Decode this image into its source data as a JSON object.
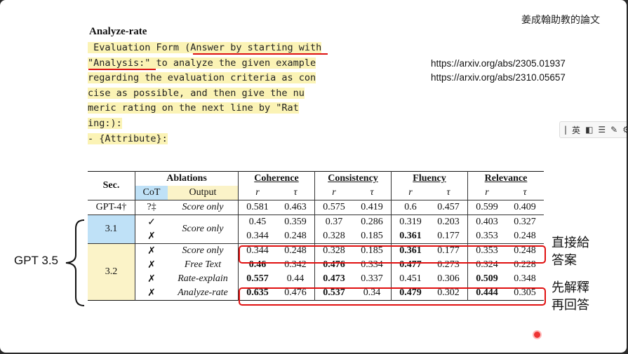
{
  "author_note": "姜成翰助教的論文",
  "section_heading": "Analyze-rate",
  "code_lines": [
    " Evaluation Form (Answer by starting with",
    "\"Analysis:\" to analyze the given example",
    "regarding the evaluation criteria as con",
    "cise as possible, and then give the nu",
    "meric rating on the next line by \"Rat",
    "ing:):",
    "- {Attribute}:"
  ],
  "refs": [
    "https://arxiv.org/abs/2305.01937",
    "https://arxiv.org/abs/2310.05657"
  ],
  "toolbar": {
    "items": [
      "英",
      "◧",
      "☰",
      "✎",
      "⚙"
    ]
  },
  "table": {
    "header": {
      "sec": "Sec.",
      "ablations": "Ablations",
      "cot": "CoT",
      "output": "Output",
      "metrics": [
        "Coherence",
        "Consistency",
        "Fluency",
        "Relevance"
      ],
      "sub": [
        "r",
        "τ",
        "r",
        "τ",
        "r",
        "τ",
        "r",
        "τ"
      ]
    },
    "rows": [
      {
        "sec": "GPT-4†",
        "cot": "?‡",
        "output": "Score only",
        "vals": [
          "0.581",
          "0.463",
          "0.575",
          "0.419",
          "0.6",
          "0.457",
          "0.599",
          "0.409"
        ],
        "bold": []
      },
      {
        "sec": "3.1",
        "cot": "✓",
        "output": "Score only",
        "vals": [
          "0.45",
          "0.359",
          "0.37",
          "0.286",
          "0.319",
          "0.203",
          "0.403",
          "0.327"
        ],
        "bold": []
      },
      {
        "sec": "",
        "cot": "✗",
        "output": "",
        "vals": [
          "0.344",
          "0.248",
          "0.328",
          "0.185",
          "0.361",
          "0.177",
          "0.353",
          "0.248"
        ],
        "bold": [
          4
        ]
      },
      {
        "sec": "3.2",
        "cot": "✗",
        "output": "Score only",
        "vals": [
          "0.344",
          "0.248",
          "0.328",
          "0.185",
          "0.361",
          "0.177",
          "0.353",
          "0.248"
        ],
        "bold": [
          4
        ]
      },
      {
        "sec": "",
        "cot": "✗",
        "output": "Free Text",
        "vals": [
          "0.46",
          "0.342",
          "0.476",
          "0.334",
          "0.477",
          "0.273",
          "0.324",
          "0.228"
        ],
        "bold": [
          0,
          2,
          4
        ]
      },
      {
        "sec": "",
        "cot": "✗",
        "output": "Rate-explain",
        "vals": [
          "0.557",
          "0.44",
          "0.473",
          "0.337",
          "0.451",
          "0.306",
          "0.509",
          "0.348"
        ],
        "bold": [
          0,
          2,
          6
        ]
      },
      {
        "sec": "",
        "cot": "✗",
        "output": "Analyze-rate",
        "vals": [
          "0.635",
          "0.476",
          "0.537",
          "0.34",
          "0.479",
          "0.302",
          "0.444",
          "0.305"
        ],
        "bold": [
          0,
          2,
          4,
          6
        ]
      }
    ]
  },
  "annotations": {
    "gpt_label": "GPT 3.5",
    "direct_answer": [
      "直接給",
      "答案"
    ],
    "explain_first": [
      "先解釋",
      "再回答"
    ]
  }
}
